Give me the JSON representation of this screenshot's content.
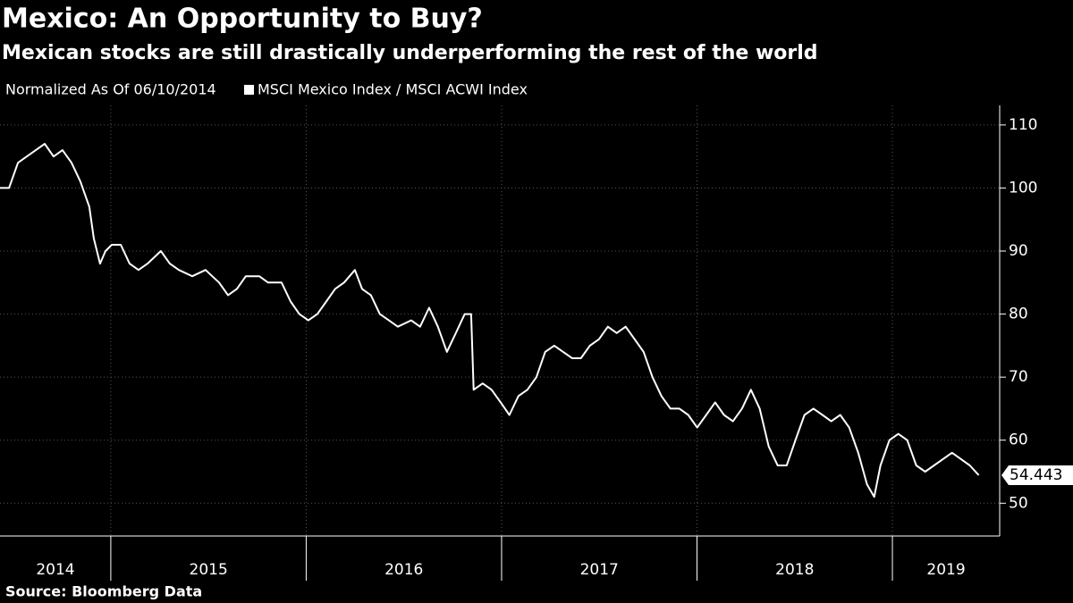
{
  "chart_data": {
    "type": "line",
    "title": "Mexico: An Opportunity to Buy?",
    "subtitle": "Mexican stocks are still drastically underperforming the rest of the world",
    "note": "Normalized As Of 06/10/2014",
    "source": "Source: Bloomberg Data",
    "x": [
      2014.433,
      2014.479,
      2014.525,
      2014.57,
      2014.616,
      2014.662,
      2014.707,
      2014.753,
      2014.799,
      2014.845,
      2014.89,
      2014.913,
      2014.945,
      2014.973,
      2015.005,
      2015.051,
      2015.096,
      2015.142,
      2015.188,
      2015.256,
      2015.302,
      2015.348,
      2015.417,
      2015.485,
      2015.554,
      2015.6,
      2015.645,
      2015.691,
      2015.76,
      2015.805,
      2015.874,
      2015.92,
      2015.965,
      2016.011,
      2016.057,
      2016.103,
      2016.148,
      2016.194,
      2016.249,
      2016.286,
      2016.331,
      2016.377,
      2016.423,
      2016.469,
      2016.537,
      2016.583,
      2016.629,
      2016.674,
      2016.72,
      2016.766,
      2016.811,
      2016.844,
      2016.857,
      2016.903,
      2016.949,
      2016.995,
      2017.04,
      2017.086,
      2017.132,
      2017.178,
      2017.223,
      2017.269,
      2017.315,
      2017.361,
      2017.406,
      2017.452,
      2017.498,
      2017.544,
      2017.589,
      2017.635,
      2017.681,
      2017.727,
      2017.772,
      2017.818,
      2017.864,
      2017.91,
      2017.955,
      2018.001,
      2018.047,
      2018.093,
      2018.138,
      2018.184,
      2018.23,
      2018.276,
      2018.321,
      2018.367,
      2018.413,
      2018.459,
      2018.504,
      2018.55,
      2018.596,
      2018.642,
      2018.687,
      2018.733,
      2018.779,
      2018.825,
      2018.87,
      2018.907,
      2018.939,
      2018.985,
      2019.03,
      2019.076,
      2019.122,
      2019.168,
      2019.213,
      2019.259,
      2019.305,
      2019.351,
      2019.396,
      2019.442
    ],
    "series": [
      {
        "name": "MSCI Mexico Index / MSCI ACWI Index",
        "color": "#ffffff",
        "values": [
          100,
          100,
          104,
          105,
          106,
          107,
          105,
          106,
          104,
          101,
          97,
          92,
          88,
          90,
          91,
          91,
          88,
          87,
          88,
          90,
          88,
          87,
          86,
          87,
          85,
          83,
          84,
          86,
          86,
          85,
          85,
          82,
          80,
          79,
          80,
          82,
          84,
          85,
          87,
          84,
          83,
          80,
          79,
          78,
          79,
          78,
          81,
          78,
          74,
          77,
          80,
          80,
          68,
          69,
          68,
          66,
          64,
          67,
          68,
          70,
          74,
          75,
          74,
          73,
          73,
          75,
          76,
          78,
          77,
          78,
          76,
          74,
          70,
          67,
          65,
          65,
          64,
          62,
          64,
          66,
          64,
          63,
          65,
          68,
          65,
          59,
          56,
          56,
          60,
          64,
          65,
          64,
          63,
          64,
          62,
          58,
          53,
          51,
          56,
          60,
          61,
          60,
          56,
          55,
          56,
          57,
          58,
          57,
          56,
          54.443
        ]
      }
    ],
    "xlim": [
      2014.433,
      2019.549
    ],
    "xticks": [
      2015,
      2016,
      2017,
      2018,
      2019
    ],
    "year_labels": [
      "2014",
      "2015",
      "2016",
      "2017",
      "2018",
      "2019"
    ],
    "ylim": [
      44.8,
      113.1
    ],
    "yticks": [
      50,
      60,
      70,
      80,
      90,
      100,
      110
    ],
    "grid": true
  }
}
